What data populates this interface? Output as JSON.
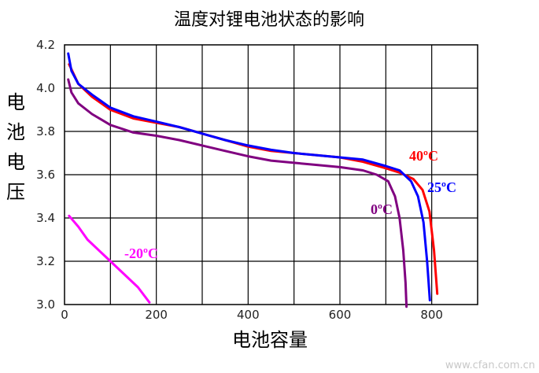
{
  "chart_data": {
    "type": "line",
    "title": "温度对锂电池状态的影响",
    "xlabel": "电池容量",
    "ylabel": "电池电压",
    "xlim": [
      0,
      900
    ],
    "ylim": [
      3.0,
      4.2
    ],
    "xticks": [
      "0",
      "200",
      "400",
      "600",
      "800"
    ],
    "yticks": [
      "3.0",
      "3.2",
      "3.4",
      "3.6",
      "3.8",
      "4.0",
      "4.2"
    ],
    "grid": true,
    "legend": "inline labels",
    "series": [
      {
        "name": "40ºC",
        "color": "#ff0000",
        "x": [
          10,
          30,
          60,
          100,
          150,
          200,
          250,
          300,
          350,
          400,
          450,
          500,
          550,
          600,
          650,
          700,
          730,
          760,
          780,
          795,
          805,
          812
        ],
        "y": [
          4.11,
          4.02,
          3.96,
          3.9,
          3.86,
          3.84,
          3.82,
          3.79,
          3.76,
          3.73,
          3.71,
          3.7,
          3.69,
          3.68,
          3.66,
          3.63,
          3.61,
          3.58,
          3.53,
          3.43,
          3.25,
          3.05
        ]
      },
      {
        "name": "25ºC",
        "color": "#0000ff",
        "x": [
          8,
          15,
          30,
          60,
          100,
          150,
          200,
          250,
          300,
          350,
          400,
          450,
          500,
          550,
          600,
          650,
          700,
          730,
          755,
          770,
          782,
          790,
          796
        ],
        "y": [
          4.16,
          4.08,
          4.02,
          3.97,
          3.91,
          3.87,
          3.845,
          3.82,
          3.79,
          3.76,
          3.735,
          3.715,
          3.7,
          3.69,
          3.68,
          3.67,
          3.64,
          3.62,
          3.57,
          3.5,
          3.38,
          3.2,
          3.02
        ]
      },
      {
        "name": "0ºC",
        "color": "#800080",
        "x": [
          8,
          15,
          30,
          60,
          100,
          150,
          200,
          250,
          300,
          350,
          400,
          450,
          500,
          550,
          600,
          650,
          680,
          705,
          720,
          730,
          738,
          743,
          745
        ],
        "y": [
          4.04,
          3.98,
          3.93,
          3.88,
          3.83,
          3.795,
          3.78,
          3.76,
          3.735,
          3.71,
          3.685,
          3.665,
          3.655,
          3.645,
          3.635,
          3.62,
          3.6,
          3.57,
          3.5,
          3.4,
          3.25,
          3.1,
          2.99
        ]
      },
      {
        "name": "-20ºC",
        "color": "#ff00ff",
        "x": [
          10,
          30,
          50,
          80,
          120,
          160,
          185
        ],
        "y": [
          3.41,
          3.36,
          3.3,
          3.24,
          3.16,
          3.08,
          3.01
        ]
      }
    ]
  },
  "watermark": "www.cfan.com.cn"
}
